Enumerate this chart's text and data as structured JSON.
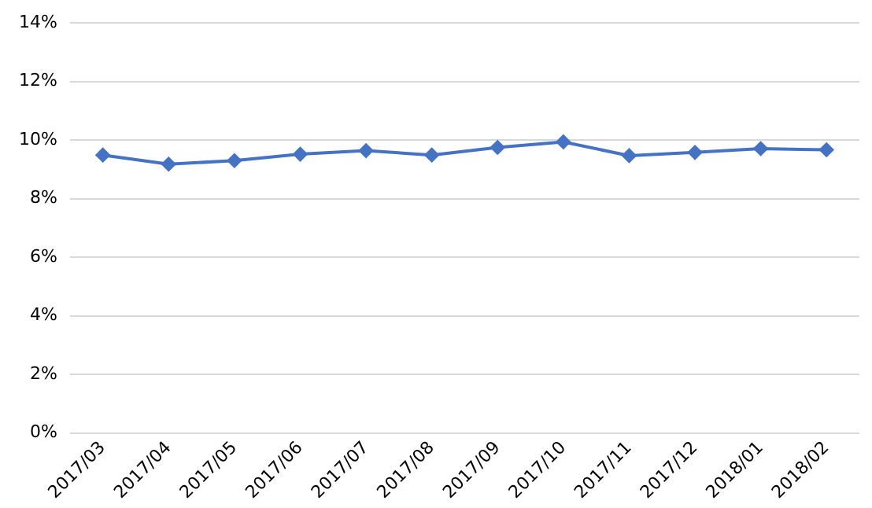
{
  "chart_data": {
    "type": "line",
    "categories": [
      "2017/03",
      "2017/04",
      "2017/05",
      "2017/06",
      "2017/07",
      "2017/08",
      "2017/09",
      "2017/10",
      "2017/11",
      "2017/12",
      "2018/01",
      "2018/02"
    ],
    "series": [
      {
        "color": "#4472c4",
        "values": [
          9.49,
          9.18,
          9.3,
          9.52,
          9.64,
          9.49,
          9.75,
          9.94,
          9.47,
          9.58,
          9.71,
          9.67
        ]
      }
    ],
    "ylim": [
      0,
      14
    ],
    "yticks": [
      {
        "value": 0,
        "label": "0%"
      },
      {
        "value": 2,
        "label": "2%"
      },
      {
        "value": 4,
        "label": "4%"
      },
      {
        "value": 6,
        "label": "6%"
      },
      {
        "value": 8,
        "label": "8%"
      },
      {
        "value": 10,
        "label": "10%"
      },
      {
        "value": 12,
        "label": "12%"
      },
      {
        "value": 14,
        "label": "14%"
      }
    ],
    "grid": "y",
    "legend": false,
    "marker": "diamond",
    "line_style": "solid"
  }
}
